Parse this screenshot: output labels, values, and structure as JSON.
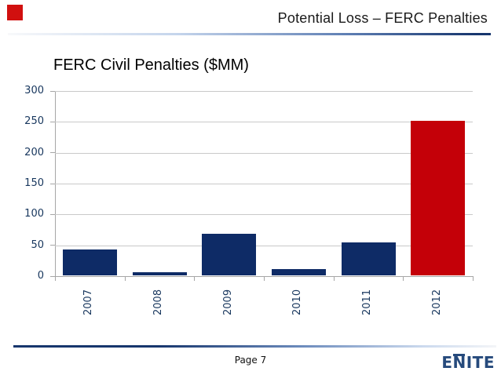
{
  "header": {
    "title": "Potential Loss – FERC Penalties"
  },
  "chart_data": {
    "type": "bar",
    "title": "FERC Civil Penalties ($MM)",
    "categories": [
      "2007",
      "2008",
      "2009",
      "2010",
      "2011",
      "2012"
    ],
    "values": [
      42,
      5,
      68,
      10,
      53,
      250
    ],
    "xlabel": "",
    "ylabel": "",
    "ylim": [
      0,
      300
    ],
    "yticks": [
      0,
      50,
      100,
      150,
      200,
      250,
      300
    ],
    "grid": true,
    "legend": false,
    "x_tick_rotation": 90,
    "bar_color": "#0e2b66",
    "highlight_color": "#c40008",
    "highlight_index": 5
  },
  "footer": {
    "page_label": "Page 7",
    "logo_text": "ENITE"
  },
  "colors": {
    "marker_red": "#d1100f",
    "bar_navy": "#0e2b66",
    "bar_red": "#c40008",
    "axis_text_navy": "#17365d",
    "gridline_gray": "#c9c9c9",
    "axis_line_gray": "#a6a6a6",
    "rule_navy": "#17366d",
    "logo_navy": "#264a7c",
    "title_text": "#1a1a1a"
  }
}
